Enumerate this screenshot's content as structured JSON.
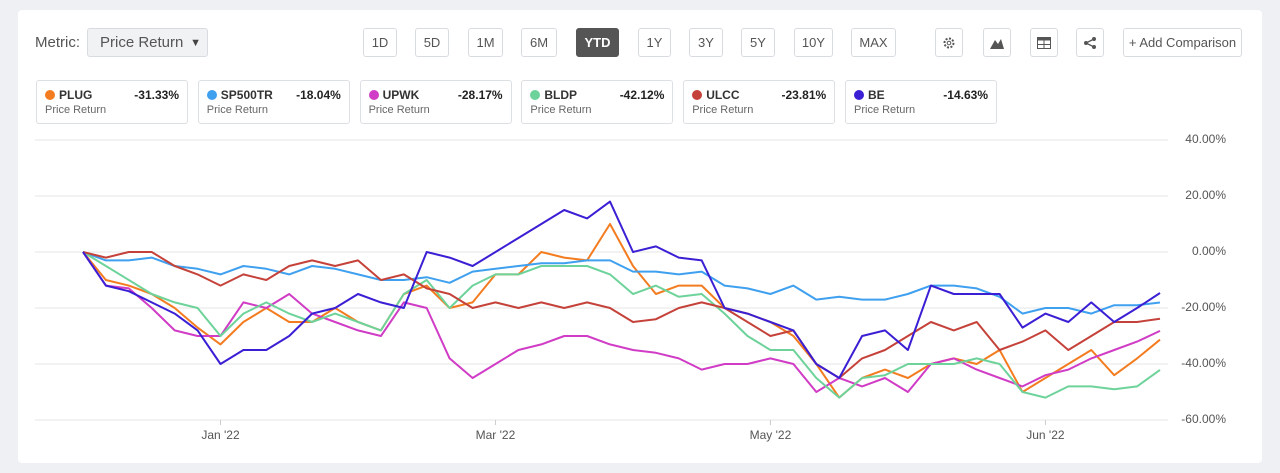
{
  "toolbar": {
    "metric_label": "Metric:",
    "metric": "Price Return",
    "ranges": [
      "1D",
      "5D",
      "1M",
      "6M",
      "YTD",
      "1Y",
      "3Y",
      "5Y",
      "10Y",
      "MAX"
    ],
    "active_range": "YTD",
    "add_comparison": "+ Add Comparison"
  },
  "chart_data": {
    "type": "line",
    "categories": [
      null,
      null,
      null,
      null,
      null,
      null,
      "Jan '22",
      null,
      null,
      null,
      null,
      null,
      null,
      null,
      null,
      null,
      null,
      null,
      "Mar '22",
      null,
      null,
      null,
      null,
      null,
      null,
      null,
      null,
      null,
      null,
      null,
      "May '22",
      null,
      null,
      null,
      null,
      null,
      null,
      null,
      null,
      null,
      null,
      null,
      "Jun '22",
      null,
      null,
      null,
      null,
      null
    ],
    "ylim": [
      -60,
      40
    ],
    "yticks": [
      {
        "value": 40,
        "label": "40.00%"
      },
      {
        "value": 20,
        "label": "20.00%"
      },
      {
        "value": 0,
        "label": "0.00%"
      },
      {
        "value": -20,
        "label": "-20.00%"
      },
      {
        "value": -40,
        "label": "-40.00%"
      },
      {
        "value": -60,
        "label": "-60.00%"
      }
    ],
    "grid": true,
    "series": [
      {
        "name": "PLUG",
        "color": "#f47c20",
        "metric_label": "Price Return",
        "ytd_label": "-31.33%",
        "values": [
          0,
          -10,
          -12,
          -15,
          -20,
          -27,
          -33,
          -25,
          -20,
          -25,
          -25,
          -20,
          -25,
          -28,
          -15,
          -12,
          -20,
          -18,
          -8,
          -8,
          0,
          -2,
          -3,
          10,
          -5,
          -15,
          -12,
          -12,
          -20,
          -22,
          -25,
          -30,
          -40,
          -52,
          -45,
          -42,
          -45,
          -40,
          -38,
          -40,
          -35,
          -50,
          -45,
          -40,
          -35,
          -44,
          -38,
          -31.33
        ]
      },
      {
        "name": "SP500TR",
        "color": "#3fa0ef",
        "metric_label": "Price Return",
        "ytd_label": "-18.04%",
        "values": [
          0,
          -3,
          -3,
          -2,
          -5,
          -6,
          -8,
          -5,
          -6,
          -8,
          -5,
          -6,
          -8,
          -10,
          -10,
          -9,
          -11,
          -7,
          -6,
          -5,
          -4,
          -4,
          -3,
          -3,
          -7,
          -7,
          -8,
          -7,
          -12,
          -13,
          -15,
          -12,
          -17,
          -16,
          -17,
          -17,
          -15,
          -12,
          -12,
          -13,
          -16,
          -22,
          -20,
          -20,
          -22,
          -19,
          -19,
          -18.04
        ]
      },
      {
        "name": "UPWK",
        "color": "#d03cc6",
        "metric_label": "Price Return",
        "ytd_label": "-28.17%",
        "values": [
          0,
          -12,
          -13,
          -20,
          -28,
          -30,
          -30,
          -18,
          -20,
          -15,
          -22,
          -25,
          -28,
          -30,
          -18,
          -20,
          -38,
          -45,
          -40,
          -35,
          -33,
          -30,
          -30,
          -33,
          -35,
          -36,
          -38,
          -42,
          -40,
          -40,
          -38,
          -40,
          -50,
          -45,
          -48,
          -45,
          -50,
          -40,
          -38,
          -42,
          -45,
          -48,
          -44,
          -42,
          -38,
          -35,
          -32,
          -28.17
        ]
      },
      {
        "name": "BLDP",
        "color": "#6dd39a",
        "metric_label": "Price Return",
        "ytd_label": "-42.12%",
        "values": [
          0,
          -5,
          -10,
          -15,
          -18,
          -20,
          -30,
          -22,
          -18,
          -22,
          -25,
          -22,
          -25,
          -28,
          -15,
          -10,
          -20,
          -12,
          -8,
          -8,
          -5,
          -5,
          -5,
          -8,
          -15,
          -12,
          -16,
          -15,
          -22,
          -30,
          -35,
          -35,
          -45,
          -52,
          -45,
          -44,
          -40,
          -40,
          -40,
          -38,
          -40,
          -50,
          -52,
          -48,
          -48,
          -49,
          -48,
          -42.12
        ]
      },
      {
        "name": "ULCC",
        "color": "#c5423a",
        "metric_label": "Price Return",
        "ytd_label": "-23.81%",
        "values": [
          0,
          -2,
          0,
          0,
          -5,
          -8,
          -12,
          -8,
          -10,
          -5,
          -3,
          -5,
          -3,
          -10,
          -8,
          -13,
          -15,
          -20,
          -18,
          -20,
          -18,
          -20,
          -18,
          -20,
          -25,
          -24,
          -20,
          -18,
          -20,
          -25,
          -30,
          -28,
          -40,
          -45,
          -38,
          -35,
          -30,
          -25,
          -28,
          -25,
          -35,
          -32,
          -28,
          -35,
          -30,
          -25,
          -25,
          -23.81
        ]
      },
      {
        "name": "BE",
        "color": "#3a1fd4",
        "metric_label": "Price Return",
        "ytd_label": "-14.63%",
        "values": [
          0,
          -12,
          -14,
          -18,
          -22,
          -28,
          -40,
          -35,
          -35,
          -30,
          -22,
          -20,
          -15,
          -18,
          -20,
          0,
          -2,
          -5,
          0,
          5,
          10,
          15,
          12,
          18,
          0,
          2,
          -2,
          -3,
          -20,
          -22,
          -25,
          -28,
          -40,
          -45,
          -30,
          -28,
          -35,
          -12,
          -15,
          -15,
          -15,
          -27,
          -22,
          -25,
          -18,
          -25,
          -20,
          -14.63
        ]
      }
    ]
  }
}
